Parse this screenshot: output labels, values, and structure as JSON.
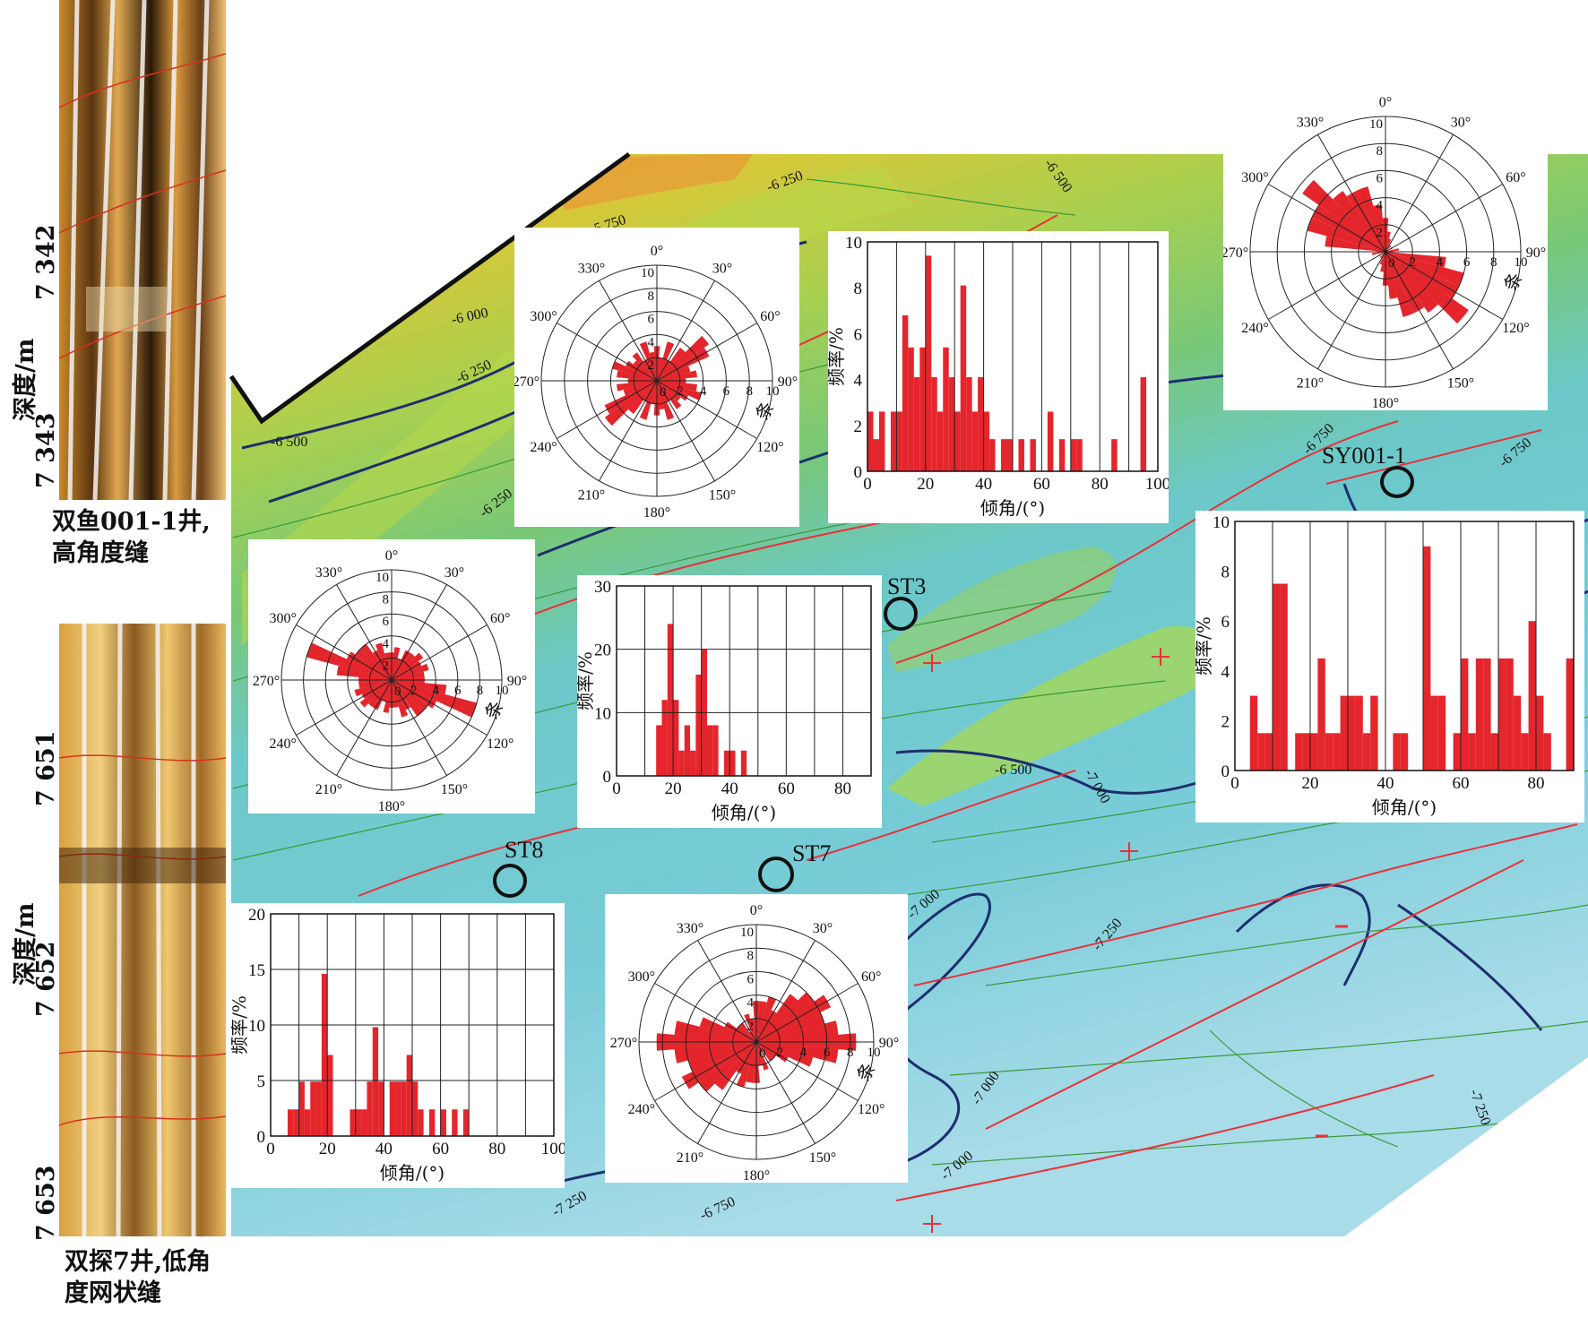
{
  "colors": {
    "bar": "#e4262c",
    "fault": "#e8323a",
    "contour_major": "#1e2e6e",
    "contour_minor": "#3a9a3a"
  },
  "logs": [
    {
      "caption_lines": [
        "双鱼001-1井,",
        "高角度缝"
      ],
      "depth_label": "深度/m",
      "ticks": [
        "7 342",
        "7 343"
      ]
    },
    {
      "caption_lines": [
        "双探7井,低角",
        "度网状缝"
      ],
      "depth_label": "深度/m",
      "ticks": [
        "7 651",
        "7 652",
        "7 653"
      ]
    }
  ],
  "map": {
    "contour_labels": [
      "-5 750",
      "-6 250",
      "-6 500",
      "-6 000",
      "-6 250",
      "-6 500",
      "-6 250",
      "-6 750",
      "-6 750",
      "-6 500",
      "-7 000",
      "-7 000",
      "-7 250",
      "-7 000",
      "-7 250",
      "-7 000",
      "-7 250",
      "-6 750"
    ],
    "wells": [
      "SY001-1",
      "ST3",
      "ST8",
      "ST7"
    ]
  },
  "chart_data": [
    {
      "id": "rose-sy001",
      "type": "rose",
      "angle_labels": [
        "0°",
        "30°",
        "60°",
        "90°",
        "120°",
        "150°",
        "180°",
        "210°",
        "240°",
        "270°",
        "300°",
        "330°"
      ],
      "radial_ticks": [
        "2",
        "4",
        "6",
        "8",
        "10"
      ],
      "radial_tick_values": [
        2,
        4,
        6,
        8,
        10
      ],
      "radial_label": "条",
      "rmax": 10,
      "sectors": [
        {
          "a": 0,
          "v": 2.5
        },
        {
          "a": 10,
          "v": 1.5
        },
        {
          "a": 20,
          "v": 1.0
        },
        {
          "a": 40,
          "v": 0.6
        },
        {
          "a": 60,
          "v": 0.6
        },
        {
          "a": 80,
          "v": 1.0
        },
        {
          "a": 100,
          "v": 4.5
        },
        {
          "a": 110,
          "v": 6.0
        },
        {
          "a": 120,
          "v": 4.0
        },
        {
          "a": 130,
          "v": 7.5
        },
        {
          "a": 140,
          "v": 5.5
        },
        {
          "a": 150,
          "v": 5.0
        },
        {
          "a": 160,
          "v": 5.0
        },
        {
          "a": 170,
          "v": 3.5
        },
        {
          "a": 180,
          "v": 2.0
        },
        {
          "a": 190,
          "v": 1.0
        },
        {
          "a": 260,
          "v": 0.6
        },
        {
          "a": 280,
          "v": 1.0
        },
        {
          "a": 300,
          "v": 6.0
        },
        {
          "a": 310,
          "v": 5.0
        },
        {
          "a": 320,
          "v": 4.0
        },
        {
          "a": 330,
          "v": 2.5
        },
        {
          "a": 340,
          "v": 4.5
        },
        {
          "a": 350,
          "v": 3.5
        }
      ]
    },
    {
      "id": "rose-upper-mid",
      "type": "rose",
      "angle_labels": [
        "0°",
        "30°",
        "60°",
        "90°",
        "120°",
        "150°",
        "180°",
        "210°",
        "240°",
        "270°",
        "300°",
        "330°"
      ],
      "radial_ticks": [
        "2",
        "4",
        "6",
        "8",
        "10"
      ],
      "radial_tick_values": [
        2,
        4,
        6,
        8,
        10
      ],
      "radial_label": "条",
      "rmax": 10,
      "sectors": [
        {
          "a": 0,
          "v": 2.5
        },
        {
          "a": 10,
          "v": 2.0
        },
        {
          "a": 20,
          "v": 3.5
        },
        {
          "a": 30,
          "v": 2.0
        },
        {
          "a": 40,
          "v": 3.5
        },
        {
          "a": 50,
          "v": 4.0
        },
        {
          "a": 60,
          "v": 5.0
        },
        {
          "a": 70,
          "v": 3.0
        },
        {
          "a": 80,
          "v": 2.0
        },
        {
          "a": 90,
          "v": 2.5
        },
        {
          "a": 100,
          "v": 3.5
        },
        {
          "a": 110,
          "v": 2.5
        },
        {
          "a": 120,
          "v": 2.0
        },
        {
          "a": 130,
          "v": 1.5
        },
        {
          "a": 140,
          "v": 2.0
        },
        {
          "a": 150,
          "v": 1.5
        },
        {
          "a": 160,
          "v": 3.5
        },
        {
          "a": 170,
          "v": 2.5
        },
        {
          "a": 180,
          "v": 3.0
        },
        {
          "a": 190,
          "v": 2.0
        },
        {
          "a": 200,
          "v": 3.5
        },
        {
          "a": 210,
          "v": 2.0
        },
        {
          "a": 220,
          "v": 3.0
        },
        {
          "a": 230,
          "v": 5.5
        },
        {
          "a": 240,
          "v": 3.0
        },
        {
          "a": 250,
          "v": 2.5
        },
        {
          "a": 260,
          "v": 3.5
        },
        {
          "a": 270,
          "v": 2.5
        },
        {
          "a": 280,
          "v": 3.0
        },
        {
          "a": 290,
          "v": 4.0
        },
        {
          "a": 300,
          "v": 3.0
        },
        {
          "a": 310,
          "v": 2.5
        },
        {
          "a": 320,
          "v": 3.0
        },
        {
          "a": 330,
          "v": 2.0
        },
        {
          "a": 340,
          "v": 3.5
        },
        {
          "a": 350,
          "v": 2.0
        }
      ]
    },
    {
      "id": "rose-left-mid",
      "type": "rose",
      "angle_labels": [
        "0°",
        "30°",
        "60°",
        "90°",
        "120°",
        "150°",
        "180°",
        "210°",
        "240°",
        "270°",
        "300°",
        "330°"
      ],
      "radial_ticks": [
        "2",
        "4",
        "6",
        "8",
        "10"
      ],
      "radial_tick_values": [
        2,
        4,
        6,
        8,
        10
      ],
      "radial_label": "条",
      "rmax": 10,
      "sectors": [
        {
          "a": 0,
          "v": 2.5
        },
        {
          "a": 10,
          "v": 1.5
        },
        {
          "a": 20,
          "v": 2.0
        },
        {
          "a": 30,
          "v": 2.0
        },
        {
          "a": 40,
          "v": 2.0
        },
        {
          "a": 50,
          "v": 2.5
        },
        {
          "a": 60,
          "v": 2.5
        },
        {
          "a": 70,
          "v": 3.0
        },
        {
          "a": 80,
          "v": 2.0
        },
        {
          "a": 90,
          "v": 3.0
        },
        {
          "a": 100,
          "v": 3.0
        },
        {
          "a": 110,
          "v": 8.0
        },
        {
          "a": 120,
          "v": 3.0
        },
        {
          "a": 130,
          "v": 4.0
        },
        {
          "a": 140,
          "v": 2.0
        },
        {
          "a": 150,
          "v": 2.0
        },
        {
          "a": 160,
          "v": 2.0
        },
        {
          "a": 170,
          "v": 2.0
        },
        {
          "a": 180,
          "v": 2.5
        },
        {
          "a": 190,
          "v": 3.0
        },
        {
          "a": 200,
          "v": 2.0
        },
        {
          "a": 210,
          "v": 3.0
        },
        {
          "a": 220,
          "v": 3.0
        },
        {
          "a": 230,
          "v": 3.5
        },
        {
          "a": 240,
          "v": 3.0
        },
        {
          "a": 250,
          "v": 3.5
        },
        {
          "a": 260,
          "v": 3.0
        },
        {
          "a": 270,
          "v": 2.5
        },
        {
          "a": 280,
          "v": 5.0
        },
        {
          "a": 290,
          "v": 4.5
        },
        {
          "a": 300,
          "v": 4.5
        },
        {
          "a": 310,
          "v": 3.5
        },
        {
          "a": 320,
          "v": 4.0
        },
        {
          "a": 330,
          "v": 3.0
        },
        {
          "a": 340,
          "v": 3.5
        },
        {
          "a": 350,
          "v": 2.5
        }
      ]
    },
    {
      "id": "rose-bottom-mid",
      "type": "rose",
      "angle_labels": [
        "0°",
        "30°",
        "60°",
        "90°",
        "120°",
        "150°",
        "180°",
        "210°",
        "240°",
        "270°",
        "300°",
        "330°"
      ],
      "radial_ticks": [
        "2",
        "4",
        "6",
        "8",
        "10"
      ],
      "radial_tick_values": [
        2,
        4,
        6,
        8,
        10
      ],
      "radial_label": "条",
      "rmax": 10,
      "sectors": [
        {
          "a": 0,
          "v": 1.5
        },
        {
          "a": 10,
          "v": 3.5
        },
        {
          "a": 20,
          "v": 4.0
        },
        {
          "a": 30,
          "v": 3.0
        },
        {
          "a": 40,
          "v": 5.0
        },
        {
          "a": 50,
          "v": 5.5
        },
        {
          "a": 60,
          "v": 7.0
        },
        {
          "a": 70,
          "v": 6.0
        },
        {
          "a": 80,
          "v": 7.0
        },
        {
          "a": 90,
          "v": 8.0
        },
        {
          "a": 100,
          "v": 6.0
        },
        {
          "a": 110,
          "v": 4.0
        },
        {
          "a": 120,
          "v": 2.0
        },
        {
          "a": 150,
          "v": 1.0
        },
        {
          "a": 170,
          "v": 2.0
        },
        {
          "a": 180,
          "v": 3.5
        },
        {
          "a": 190,
          "v": 2.0
        },
        {
          "a": 200,
          "v": 2.0
        },
        {
          "a": 210,
          "v": 3.0
        },
        {
          "a": 220,
          "v": 5.0
        },
        {
          "a": 230,
          "v": 6.0
        },
        {
          "a": 240,
          "v": 6.5
        },
        {
          "a": 250,
          "v": 5.5
        },
        {
          "a": 260,
          "v": 7.0
        },
        {
          "a": 270,
          "v": 8.5
        },
        {
          "a": 280,
          "v": 7.0
        },
        {
          "a": 290,
          "v": 5.0
        },
        {
          "a": 300,
          "v": 3.0
        },
        {
          "a": 310,
          "v": 2.0
        },
        {
          "a": 320,
          "v": 2.0
        },
        {
          "a": 340,
          "v": 2.5
        },
        {
          "a": 350,
          "v": 1.5
        }
      ]
    },
    {
      "id": "hist-upper-right",
      "type": "bar",
      "xlim": [
        0,
        100
      ],
      "ylim": [
        0,
        10
      ],
      "xticks": [
        "0",
        "20",
        "40",
        "60",
        "80",
        "100"
      ],
      "xtick_values": [
        0,
        20,
        40,
        60,
        80,
        100
      ],
      "yticks": [
        "0",
        "2",
        "4",
        "6",
        "8",
        "10"
      ],
      "ytick_values": [
        0,
        2,
        4,
        6,
        8,
        10
      ],
      "xgrid": 10,
      "ygrid": 10,
      "xlabel": "倾角/(°)",
      "ylabel": "频率/%",
      "bin_width": 2,
      "bins": [
        {
          "x": 1,
          "y": 2.6
        },
        {
          "x": 3,
          "y": 1.4
        },
        {
          "x": 5,
          "y": 2.6
        },
        {
          "x": 9,
          "y": 2.6
        },
        {
          "x": 11,
          "y": 2.6
        },
        {
          "x": 13,
          "y": 6.8
        },
        {
          "x": 15,
          "y": 5.4
        },
        {
          "x": 17,
          "y": 4.1
        },
        {
          "x": 19,
          "y": 5.4
        },
        {
          "x": 21,
          "y": 9.4
        },
        {
          "x": 23,
          "y": 4.1
        },
        {
          "x": 25,
          "y": 2.6
        },
        {
          "x": 27,
          "y": 5.4
        },
        {
          "x": 29,
          "y": 4.1
        },
        {
          "x": 31,
          "y": 2.6
        },
        {
          "x": 33,
          "y": 8.1
        },
        {
          "x": 35,
          "y": 4.1
        },
        {
          "x": 37,
          "y": 2.6
        },
        {
          "x": 39,
          "y": 4.1
        },
        {
          "x": 41,
          "y": 2.6
        },
        {
          "x": 43,
          "y": 1.4
        },
        {
          "x": 47,
          "y": 1.4
        },
        {
          "x": 49,
          "y": 1.4
        },
        {
          "x": 53,
          "y": 1.4
        },
        {
          "x": 57,
          "y": 1.4
        },
        {
          "x": 63,
          "y": 2.6
        },
        {
          "x": 67,
          "y": 1.4
        },
        {
          "x": 71,
          "y": 1.4
        },
        {
          "x": 73,
          "y": 1.4
        },
        {
          "x": 85,
          "y": 1.4
        },
        {
          "x": 95,
          "y": 4.1
        }
      ]
    },
    {
      "id": "hist-right",
      "type": "bar",
      "xlim": [
        0,
        90
      ],
      "ylim": [
        0,
        10
      ],
      "xticks": [
        "0",
        "20",
        "40",
        "60",
        "80"
      ],
      "xtick_values": [
        0,
        20,
        40,
        60,
        80
      ],
      "yticks": [
        "0",
        "2",
        "4",
        "6",
        "8",
        "10"
      ],
      "ytick_values": [
        0,
        2,
        4,
        6,
        8,
        10
      ],
      "xgrid": 10,
      "ygrid": 10,
      "xlabel": "倾角/(°)",
      "ylabel": "频率/%",
      "bin_width": 2,
      "bins": [
        {
          "x": 5,
          "y": 3.0
        },
        {
          "x": 7,
          "y": 1.5
        },
        {
          "x": 9,
          "y": 1.5
        },
        {
          "x": 11,
          "y": 7.5
        },
        {
          "x": 13,
          "y": 7.5
        },
        {
          "x": 17,
          "y": 1.5
        },
        {
          "x": 19,
          "y": 1.5
        },
        {
          "x": 21,
          "y": 1.5
        },
        {
          "x": 23,
          "y": 4.5
        },
        {
          "x": 25,
          "y": 1.5
        },
        {
          "x": 27,
          "y": 1.5
        },
        {
          "x": 29,
          "y": 3.0
        },
        {
          "x": 31,
          "y": 3.0
        },
        {
          "x": 33,
          "y": 3.0
        },
        {
          "x": 35,
          "y": 1.5
        },
        {
          "x": 37,
          "y": 3.0
        },
        {
          "x": 43,
          "y": 1.5
        },
        {
          "x": 45,
          "y": 1.5
        },
        {
          "x": 51,
          "y": 9.0
        },
        {
          "x": 53,
          "y": 3.0
        },
        {
          "x": 55,
          "y": 3.0
        },
        {
          "x": 59,
          "y": 1.5
        },
        {
          "x": 61,
          "y": 4.5
        },
        {
          "x": 63,
          "y": 1.5
        },
        {
          "x": 65,
          "y": 4.5
        },
        {
          "x": 67,
          "y": 4.5
        },
        {
          "x": 69,
          "y": 1.5
        },
        {
          "x": 71,
          "y": 4.5
        },
        {
          "x": 73,
          "y": 4.5
        },
        {
          "x": 75,
          "y": 3.0
        },
        {
          "x": 77,
          "y": 1.5
        },
        {
          "x": 79,
          "y": 6.0
        },
        {
          "x": 81,
          "y": 3.0
        },
        {
          "x": 83,
          "y": 1.5
        },
        {
          "x": 89,
          "y": 4.5
        }
      ]
    },
    {
      "id": "hist-mid",
      "type": "bar",
      "xlim": [
        0,
        90
      ],
      "ylim": [
        0,
        30
      ],
      "xticks": [
        "0",
        "20",
        "40",
        "60",
        "80"
      ],
      "xtick_values": [
        0,
        20,
        40,
        60,
        80
      ],
      "yticks": [
        "0",
        "10",
        "20",
        "30"
      ],
      "ytick_values": [
        0,
        10,
        20,
        30
      ],
      "xgrid": 10,
      "ygrid": 10,
      "xlabel": "倾角/(°)",
      "ylabel": "频率/%",
      "bin_width": 2,
      "bins": [
        {
          "x": 15,
          "y": 8
        },
        {
          "x": 17,
          "y": 12
        },
        {
          "x": 19,
          "y": 24
        },
        {
          "x": 21,
          "y": 12
        },
        {
          "x": 23,
          "y": 4
        },
        {
          "x": 25,
          "y": 8
        },
        {
          "x": 27,
          "y": 4
        },
        {
          "x": 29,
          "y": 16
        },
        {
          "x": 31,
          "y": 20
        },
        {
          "x": 33,
          "y": 8
        },
        {
          "x": 35,
          "y": 8
        },
        {
          "x": 39,
          "y": 4
        },
        {
          "x": 41,
          "y": 4
        },
        {
          "x": 45,
          "y": 4
        }
      ]
    },
    {
      "id": "hist-bottom-left",
      "type": "bar",
      "xlim": [
        0,
        100
      ],
      "ylim": [
        0,
        20
      ],
      "xticks": [
        "0",
        "20",
        "40",
        "60",
        "80",
        "100"
      ],
      "xtick_values": [
        0,
        20,
        40,
        60,
        80,
        100
      ],
      "yticks": [
        "0",
        "5",
        "10",
        "15",
        "20"
      ],
      "ytick_values": [
        0,
        5,
        10,
        15,
        20
      ],
      "xgrid": 10,
      "ygrid": 5,
      "xlabel": "倾角/(°)",
      "ylabel": "频率/%",
      "bin_width": 2,
      "bins": [
        {
          "x": 7,
          "y": 2.4
        },
        {
          "x": 9,
          "y": 2.4
        },
        {
          "x": 11,
          "y": 4.9
        },
        {
          "x": 13,
          "y": 2.4
        },
        {
          "x": 15,
          "y": 4.9
        },
        {
          "x": 17,
          "y": 4.9
        },
        {
          "x": 19,
          "y": 14.6
        },
        {
          "x": 21,
          "y": 7.3
        },
        {
          "x": 29,
          "y": 2.4
        },
        {
          "x": 31,
          "y": 2.4
        },
        {
          "x": 33,
          "y": 2.4
        },
        {
          "x": 35,
          "y": 4.9
        },
        {
          "x": 37,
          "y": 9.8
        },
        {
          "x": 39,
          "y": 4.9
        },
        {
          "x": 43,
          "y": 4.9
        },
        {
          "x": 45,
          "y": 4.9
        },
        {
          "x": 47,
          "y": 4.9
        },
        {
          "x": 49,
          "y": 7.3
        },
        {
          "x": 51,
          "y": 4.9
        },
        {
          "x": 53,
          "y": 2.4
        },
        {
          "x": 57,
          "y": 2.4
        },
        {
          "x": 61,
          "y": 2.4
        },
        {
          "x": 65,
          "y": 2.4
        },
        {
          "x": 69,
          "y": 2.4
        }
      ]
    }
  ]
}
